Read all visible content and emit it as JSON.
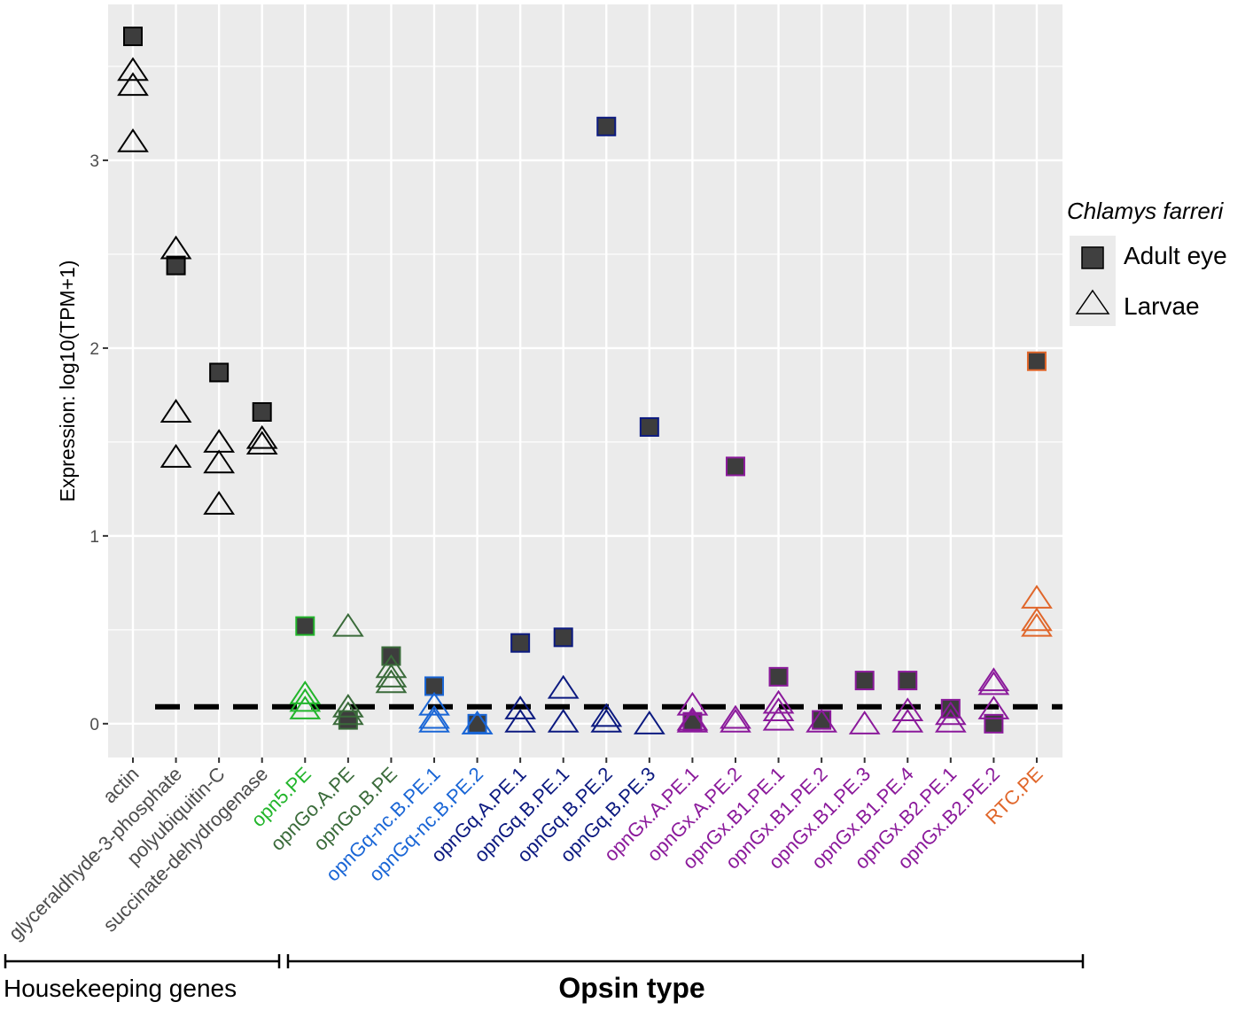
{
  "chart_data": {
    "type": "scatter",
    "ylabel": "Expression: log10(TPM+1)",
    "xlabel": "Opsin type",
    "ylim": [
      -0.18,
      3.83
    ],
    "yticks": [
      "0",
      "1",
      "2",
      "3"
    ],
    "yticks_values": [
      0,
      1,
      2,
      3
    ],
    "threshold_line": 0.09,
    "grid": true,
    "legend_position": "right",
    "legend": {
      "title": "Chlamys farreri",
      "entries": [
        {
          "name": "Adult eye",
          "shape": "filled-square"
        },
        {
          "name": "Larvae",
          "shape": "open-triangle"
        }
      ]
    },
    "groups": [
      {
        "label": "Housekeeping genes",
        "from": 0,
        "to": 3
      },
      {
        "label": "Opsin type",
        "from": 4,
        "to": 21
      }
    ],
    "categories": [
      {
        "name": "actin",
        "color": "#4d4d4d",
        "adult": [
          3.66
        ],
        "larvae": [
          3.48,
          3.4,
          3.1
        ]
      },
      {
        "name": "glyceraldhyde-3-phosphate",
        "color": "#4d4d4d",
        "adult": [
          2.44
        ],
        "larvae": [
          2.53,
          1.66,
          1.42
        ]
      },
      {
        "name": "polyubiquitin-C",
        "color": "#4d4d4d",
        "adult": [
          1.87
        ],
        "larvae": [
          1.5,
          1.39,
          1.17
        ]
      },
      {
        "name": "succinate-dehydrogenase",
        "color": "#4d4d4d",
        "adult": [
          1.66
        ],
        "larvae": [
          1.52,
          1.49
        ]
      },
      {
        "name": "opn5.PE",
        "color": "#22b52b",
        "adult": [
          0.52
        ],
        "larvae": [
          0.16,
          0.12,
          0.08
        ]
      },
      {
        "name": "opnGo.A.PE",
        "color": "#3a6b3a",
        "adult": [
          0.02
        ],
        "larvae": [
          0.52,
          0.09,
          0.05
        ]
      },
      {
        "name": "opnGo.B.PE",
        "color": "#3a6b3a",
        "adult": [
          0.36
        ],
        "larvae": [
          0.3,
          0.25,
          0.22
        ]
      },
      {
        "name": "opnGq-nc.B.PE.1",
        "color": "#1a66d6",
        "adult": [
          0.2
        ],
        "larvae": [
          0.1,
          0.03,
          0.01
        ]
      },
      {
        "name": "opnGq-nc.B.PE.2",
        "color": "#1a66d6",
        "adult": [
          0.0
        ],
        "larvae": [
          0.0,
          0.0
        ]
      },
      {
        "name": "opnGq.A.PE.1",
        "color": "#0c1a80",
        "adult": [
          0.43
        ],
        "larvae": [
          0.08,
          0.01
        ]
      },
      {
        "name": "opnGq.B.PE.1",
        "color": "#0c1a80",
        "adult": [
          0.46
        ],
        "larvae": [
          0.19,
          0.01
        ]
      },
      {
        "name": "opnGq.B.PE.2",
        "color": "#0c1a80",
        "adult": [
          3.18
        ],
        "larvae": [
          0.04,
          0.01
        ]
      },
      {
        "name": "opnGq.B.PE.3",
        "color": "#0c1a80",
        "adult": [
          1.58
        ],
        "larvae": [
          0.0
        ]
      },
      {
        "name": "opnGx.A.PE.1",
        "color": "#8b1a9b",
        "adult": [
          0.01
        ],
        "larvae": [
          0.1,
          0.02,
          0.01
        ]
      },
      {
        "name": "opnGx.A.PE.2",
        "color": "#8b1a9b",
        "adult": [
          1.37
        ],
        "larvae": [
          0.03,
          0.01
        ]
      },
      {
        "name": "opnGx.B1.PE.1",
        "color": "#8b1a9b",
        "adult": [
          0.25
        ],
        "larvae": [
          0.11,
          0.07,
          0.02
        ]
      },
      {
        "name": "opnGx.B1.PE.2",
        "color": "#8b1a9b",
        "adult": [
          0.02
        ],
        "larvae": [
          0.01
        ]
      },
      {
        "name": "opnGx.B1.PE.3",
        "color": "#8b1a9b",
        "adult": [
          0.23
        ],
        "larvae": [
          0.0
        ]
      },
      {
        "name": "opnGx.B1.PE.4",
        "color": "#8b1a9b",
        "adult": [
          0.23
        ],
        "larvae": [
          0.07,
          0.01
        ]
      },
      {
        "name": "opnGx.B2.PE.1",
        "color": "#8b1a9b",
        "adult": [
          0.08
        ],
        "larvae": [
          0.05,
          0.01
        ]
      },
      {
        "name": "opnGx.B2.PE.2",
        "color": "#8b1a9b",
        "adult": [
          0.0
        ],
        "larvae": [
          0.23,
          0.21,
          0.08
        ]
      },
      {
        "name": "RTC.PE",
        "color": "#e0662a",
        "adult": [
          1.93
        ],
        "larvae": [
          0.67,
          0.55,
          0.52
        ]
      }
    ]
  }
}
